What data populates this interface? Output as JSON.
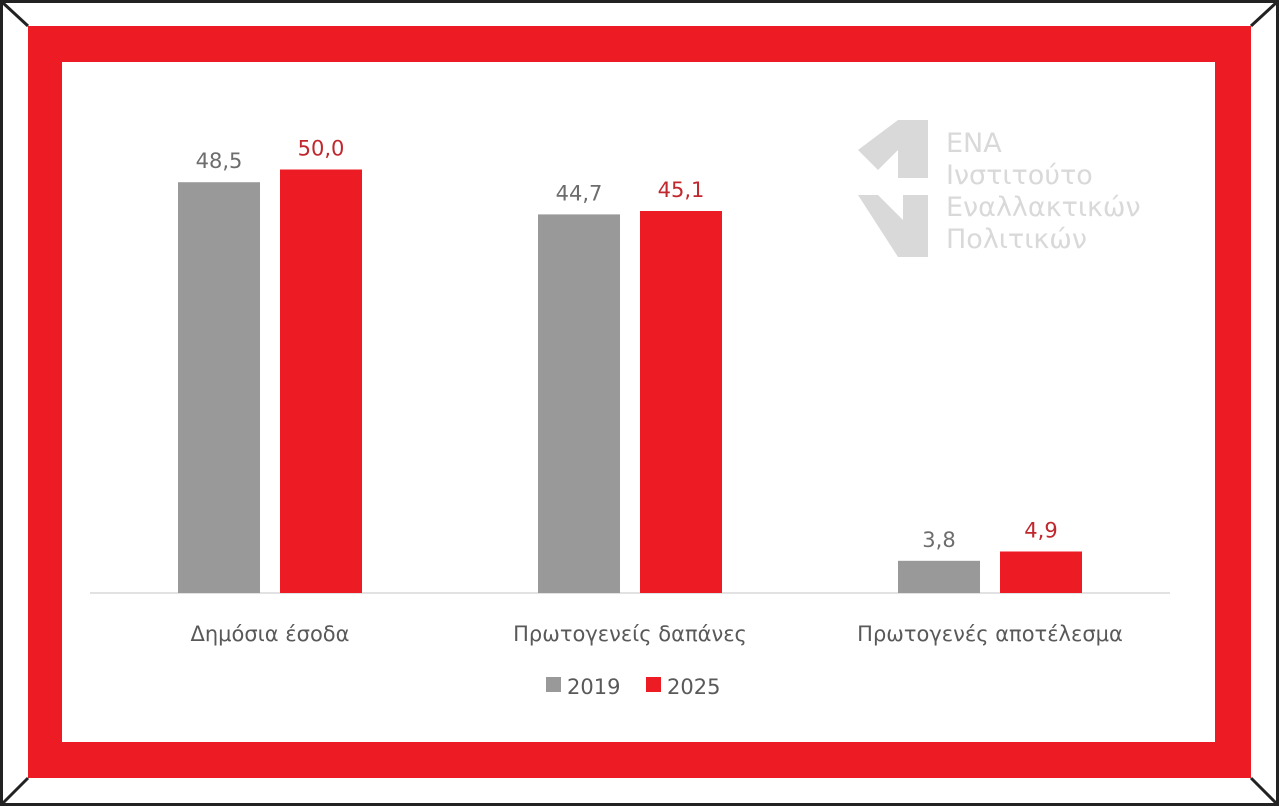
{
  "chart_data": {
    "type": "bar",
    "title": "",
    "xlabel": "",
    "ylabel": "",
    "ylim": [
      0,
      55
    ],
    "grid": false,
    "legend_position": "bottom",
    "categories": [
      "Δημόσια έσοδα",
      "Πρωτογενείς δαπάνες",
      "Πρωτογενές αποτέλεσμα"
    ],
    "series": [
      {
        "name": "2019",
        "values": [
          48.5,
          44.7,
          3.8
        ],
        "labels": [
          "48,5",
          "44,7",
          "3,8"
        ],
        "color": "#999999",
        "label_color": "#6d6d6d"
      },
      {
        "name": "2025",
        "values": [
          50.0,
          45.1,
          4.9
        ],
        "labels": [
          "50,0",
          "45,1",
          "4,9"
        ],
        "color": "#ed1c24",
        "label_color": "#c0282e"
      }
    ]
  },
  "logo": {
    "lines": [
      "ΕΝΑ",
      "Ινστιτούτο",
      "Εναλλακτικών",
      "Πολιτικών"
    ]
  },
  "colors": {
    "frame_red": "#ed1c24",
    "axis": "#d9d9d9",
    "text": "#595959"
  }
}
